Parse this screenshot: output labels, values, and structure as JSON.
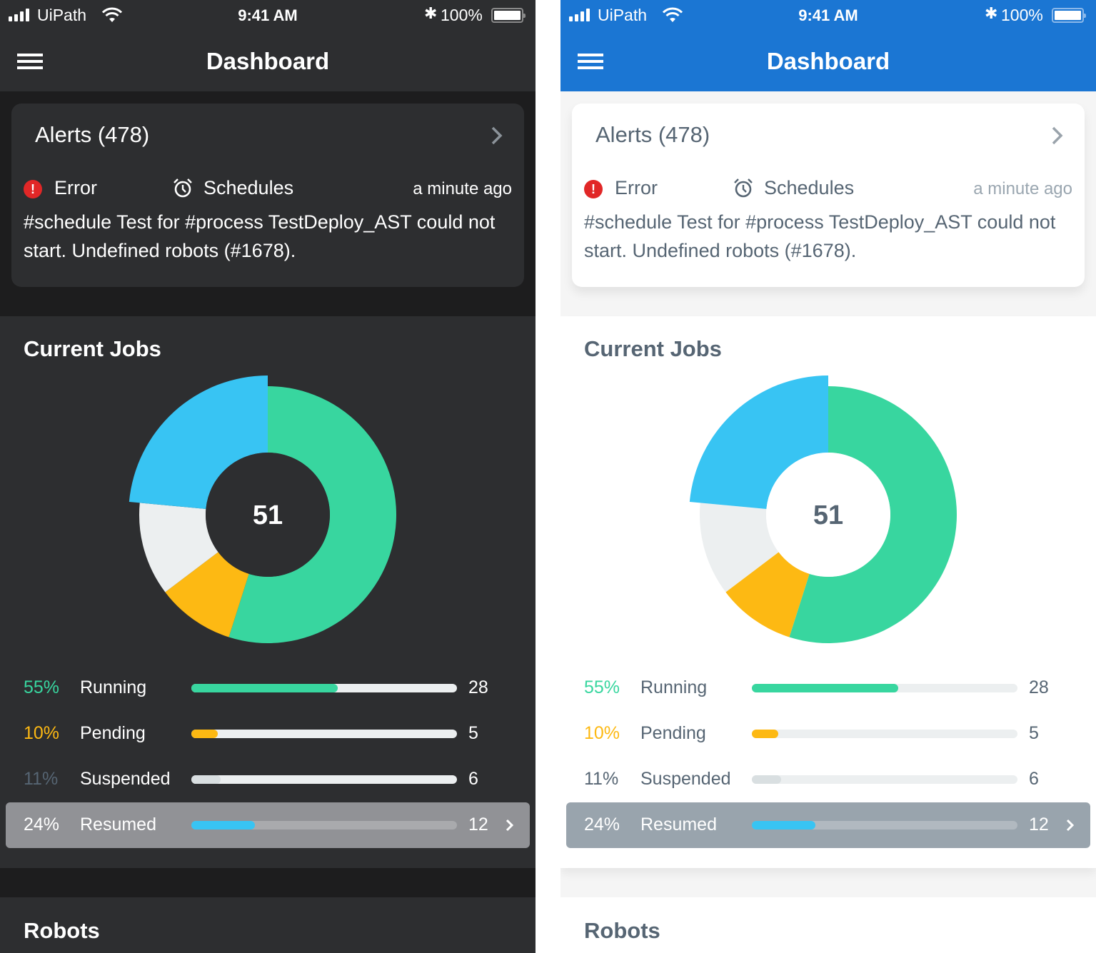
{
  "status_bar": {
    "carrier": "UiPath",
    "time": "9:41 AM",
    "battery": "100%",
    "icons": [
      "signal-icon",
      "wifi-icon",
      "bluetooth-icon",
      "battery-icon"
    ]
  },
  "nav": {
    "title": "Dashboard",
    "menu_icon": "hamburger-menu-icon"
  },
  "alerts": {
    "title": "Alerts (478)",
    "severity": "Error",
    "category": "Schedules",
    "time": "a minute ago",
    "message": "#schedule Test for #process TestDeploy_AST could not start. Undefined robots (#1678)."
  },
  "current_jobs": {
    "title": "Current Jobs",
    "total": "51",
    "rows": [
      {
        "pct": "55%",
        "label": "Running",
        "count": "28",
        "fraction": 0.55,
        "color": "#38d69f",
        "pct_color": "#38d69f"
      },
      {
        "pct": "10%",
        "label": "Pending",
        "count": "5",
        "fraction": 0.1,
        "color": "#fdb913",
        "pct_color": "#fdb913"
      },
      {
        "pct": "11%",
        "label": "Suspended",
        "count": "6",
        "fraction": 0.11,
        "color": "#d9dfe1",
        "pct_color": "#566573"
      },
      {
        "pct": "24%",
        "label": "Resumed",
        "count": "12",
        "fraction": 0.24,
        "color": "#38c4f3",
        "pct_color": "#ffffff"
      }
    ],
    "selected_index": 3
  },
  "robots": {
    "title": "Robots"
  },
  "themes": {
    "dark": {
      "header_bg": "#2d2e30",
      "bg": "#1d1d1e",
      "text": "#ffffff",
      "center_bg": "#2d2e30"
    },
    "light": {
      "header_bg": "#1b76d3",
      "bg": "#f5f5f5",
      "text": "#566573",
      "center_bg": "#ffffff"
    }
  },
  "chart_data": {
    "type": "pie",
    "title": "Current Jobs",
    "center_label": "51",
    "categories": [
      "Running",
      "Pending",
      "Suspended",
      "Resumed"
    ],
    "values": [
      28,
      5,
      6,
      12
    ],
    "percentages": [
      55,
      10,
      11,
      24
    ],
    "colors": [
      "#38d69f",
      "#fdb913",
      "#eceff0",
      "#38c4f3"
    ],
    "highlighted": "Resumed"
  }
}
